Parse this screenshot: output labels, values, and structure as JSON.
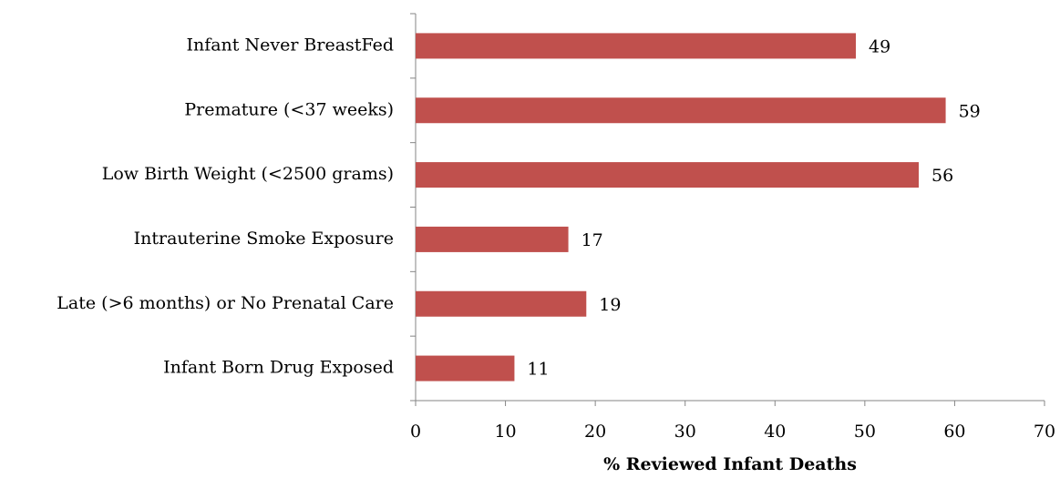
{
  "chart_data": {
    "type": "bar",
    "orientation": "horizontal",
    "categories": [
      "Infant Never BreastFed",
      "Premature (<37 weeks)",
      "Low Birth Weight (<2500 grams)",
      "Intrauterine Smoke Exposure",
      "Late (>6 months) or No Prenatal Care",
      "Infant Born Drug Exposed"
    ],
    "values": [
      49,
      59,
      56,
      17,
      19,
      11
    ],
    "color": "#c0504d",
    "x_label": "% Reviewed Infant Deaths",
    "xlim": [
      0,
      70
    ],
    "xticks": [
      0,
      10,
      20,
      30,
      40,
      50,
      60,
      70
    ]
  }
}
